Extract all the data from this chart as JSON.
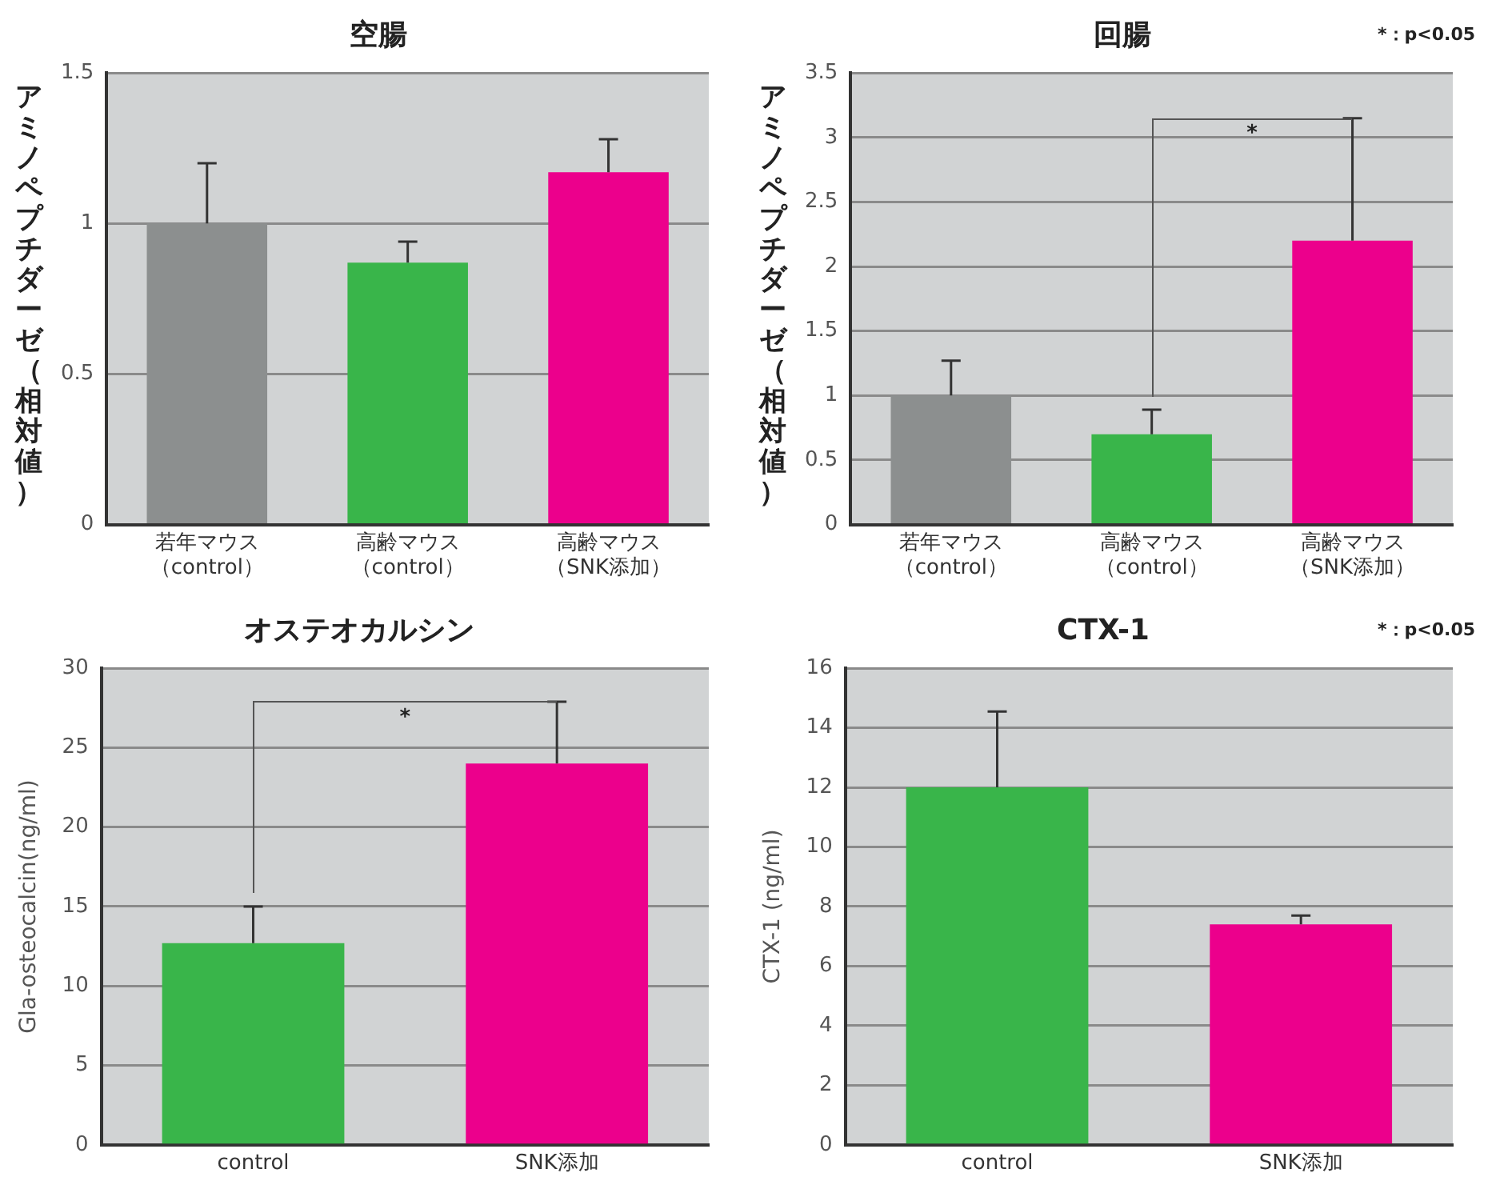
{
  "chart_data": [
    {
      "type": "bar",
      "title": "空腸",
      "ylabel": "アミノペプチダーゼ（相対値）",
      "categories": [
        "若年マウス（control）",
        "高齢マウス（control）",
        "高齢マウス（SNK添加）"
      ],
      "values": [
        1.0,
        0.87,
        1.17
      ],
      "colors": [
        "#8c8f8f",
        "#39b54a",
        "#ec008c"
      ],
      "errors": [
        [
          1.0,
          1.2
        ],
        [
          0.87,
          0.94
        ],
        [
          1.17,
          1.28
        ]
      ],
      "ylim": [
        0,
        1.5
      ],
      "yticks": [
        0,
        0.5,
        1,
        1.5
      ],
      "grid": "y"
    },
    {
      "type": "bar",
      "title": "回腸",
      "ylabel": "アミノペプチダーゼ（相対値）",
      "categories": [
        "若年マウス（control）",
        "高齢マウス（control）",
        "高齢マウス（SNK添加）"
      ],
      "values": [
        1.0,
        0.7,
        2.2
      ],
      "colors": [
        "#8c8f8f",
        "#39b54a",
        "#ec008c"
      ],
      "errors": [
        [
          1.0,
          1.27
        ],
        [
          0.7,
          0.89
        ],
        [
          2.2,
          3.15
        ]
      ],
      "ylim": [
        0,
        3.5
      ],
      "yticks": [
        0,
        0.5,
        1,
        1.5,
        2,
        2.5,
        3,
        3.5
      ],
      "grid": "y",
      "annotations": [
        "*",
        "*：p<0.05"
      ]
    },
    {
      "type": "bar",
      "title": "オステオカルシン",
      "ylabel": "Gla-osteocalcin(ng/ml)",
      "categories": [
        "control",
        "SNK添加"
      ],
      "values": [
        12.7,
        24.0
      ],
      "colors": [
        "#39b54a",
        "#ec008c"
      ],
      "errors": [
        [
          12.7,
          15.0
        ],
        [
          24.0,
          27.9
        ]
      ],
      "ylim": [
        0,
        30
      ],
      "yticks": [
        0,
        5,
        10,
        15,
        20,
        25,
        30
      ],
      "grid": "y",
      "annotations": [
        "*"
      ]
    },
    {
      "type": "bar",
      "title": "CTX-1",
      "ylabel": "CTX-1 (ng/ml)",
      "categories": [
        "control",
        "SNK添加"
      ],
      "values": [
        12.0,
        7.4
      ],
      "colors": [
        "#39b54a",
        "#ec008c"
      ],
      "errors": [
        [
          12.0,
          14.55
        ],
        [
          7.4,
          7.7
        ]
      ],
      "ylim": [
        0,
        16
      ],
      "yticks": [
        0,
        2,
        4,
        6,
        8,
        10,
        12,
        14,
        16
      ],
      "grid": "y",
      "annotations": [
        "*：p<0.05"
      ]
    }
  ]
}
